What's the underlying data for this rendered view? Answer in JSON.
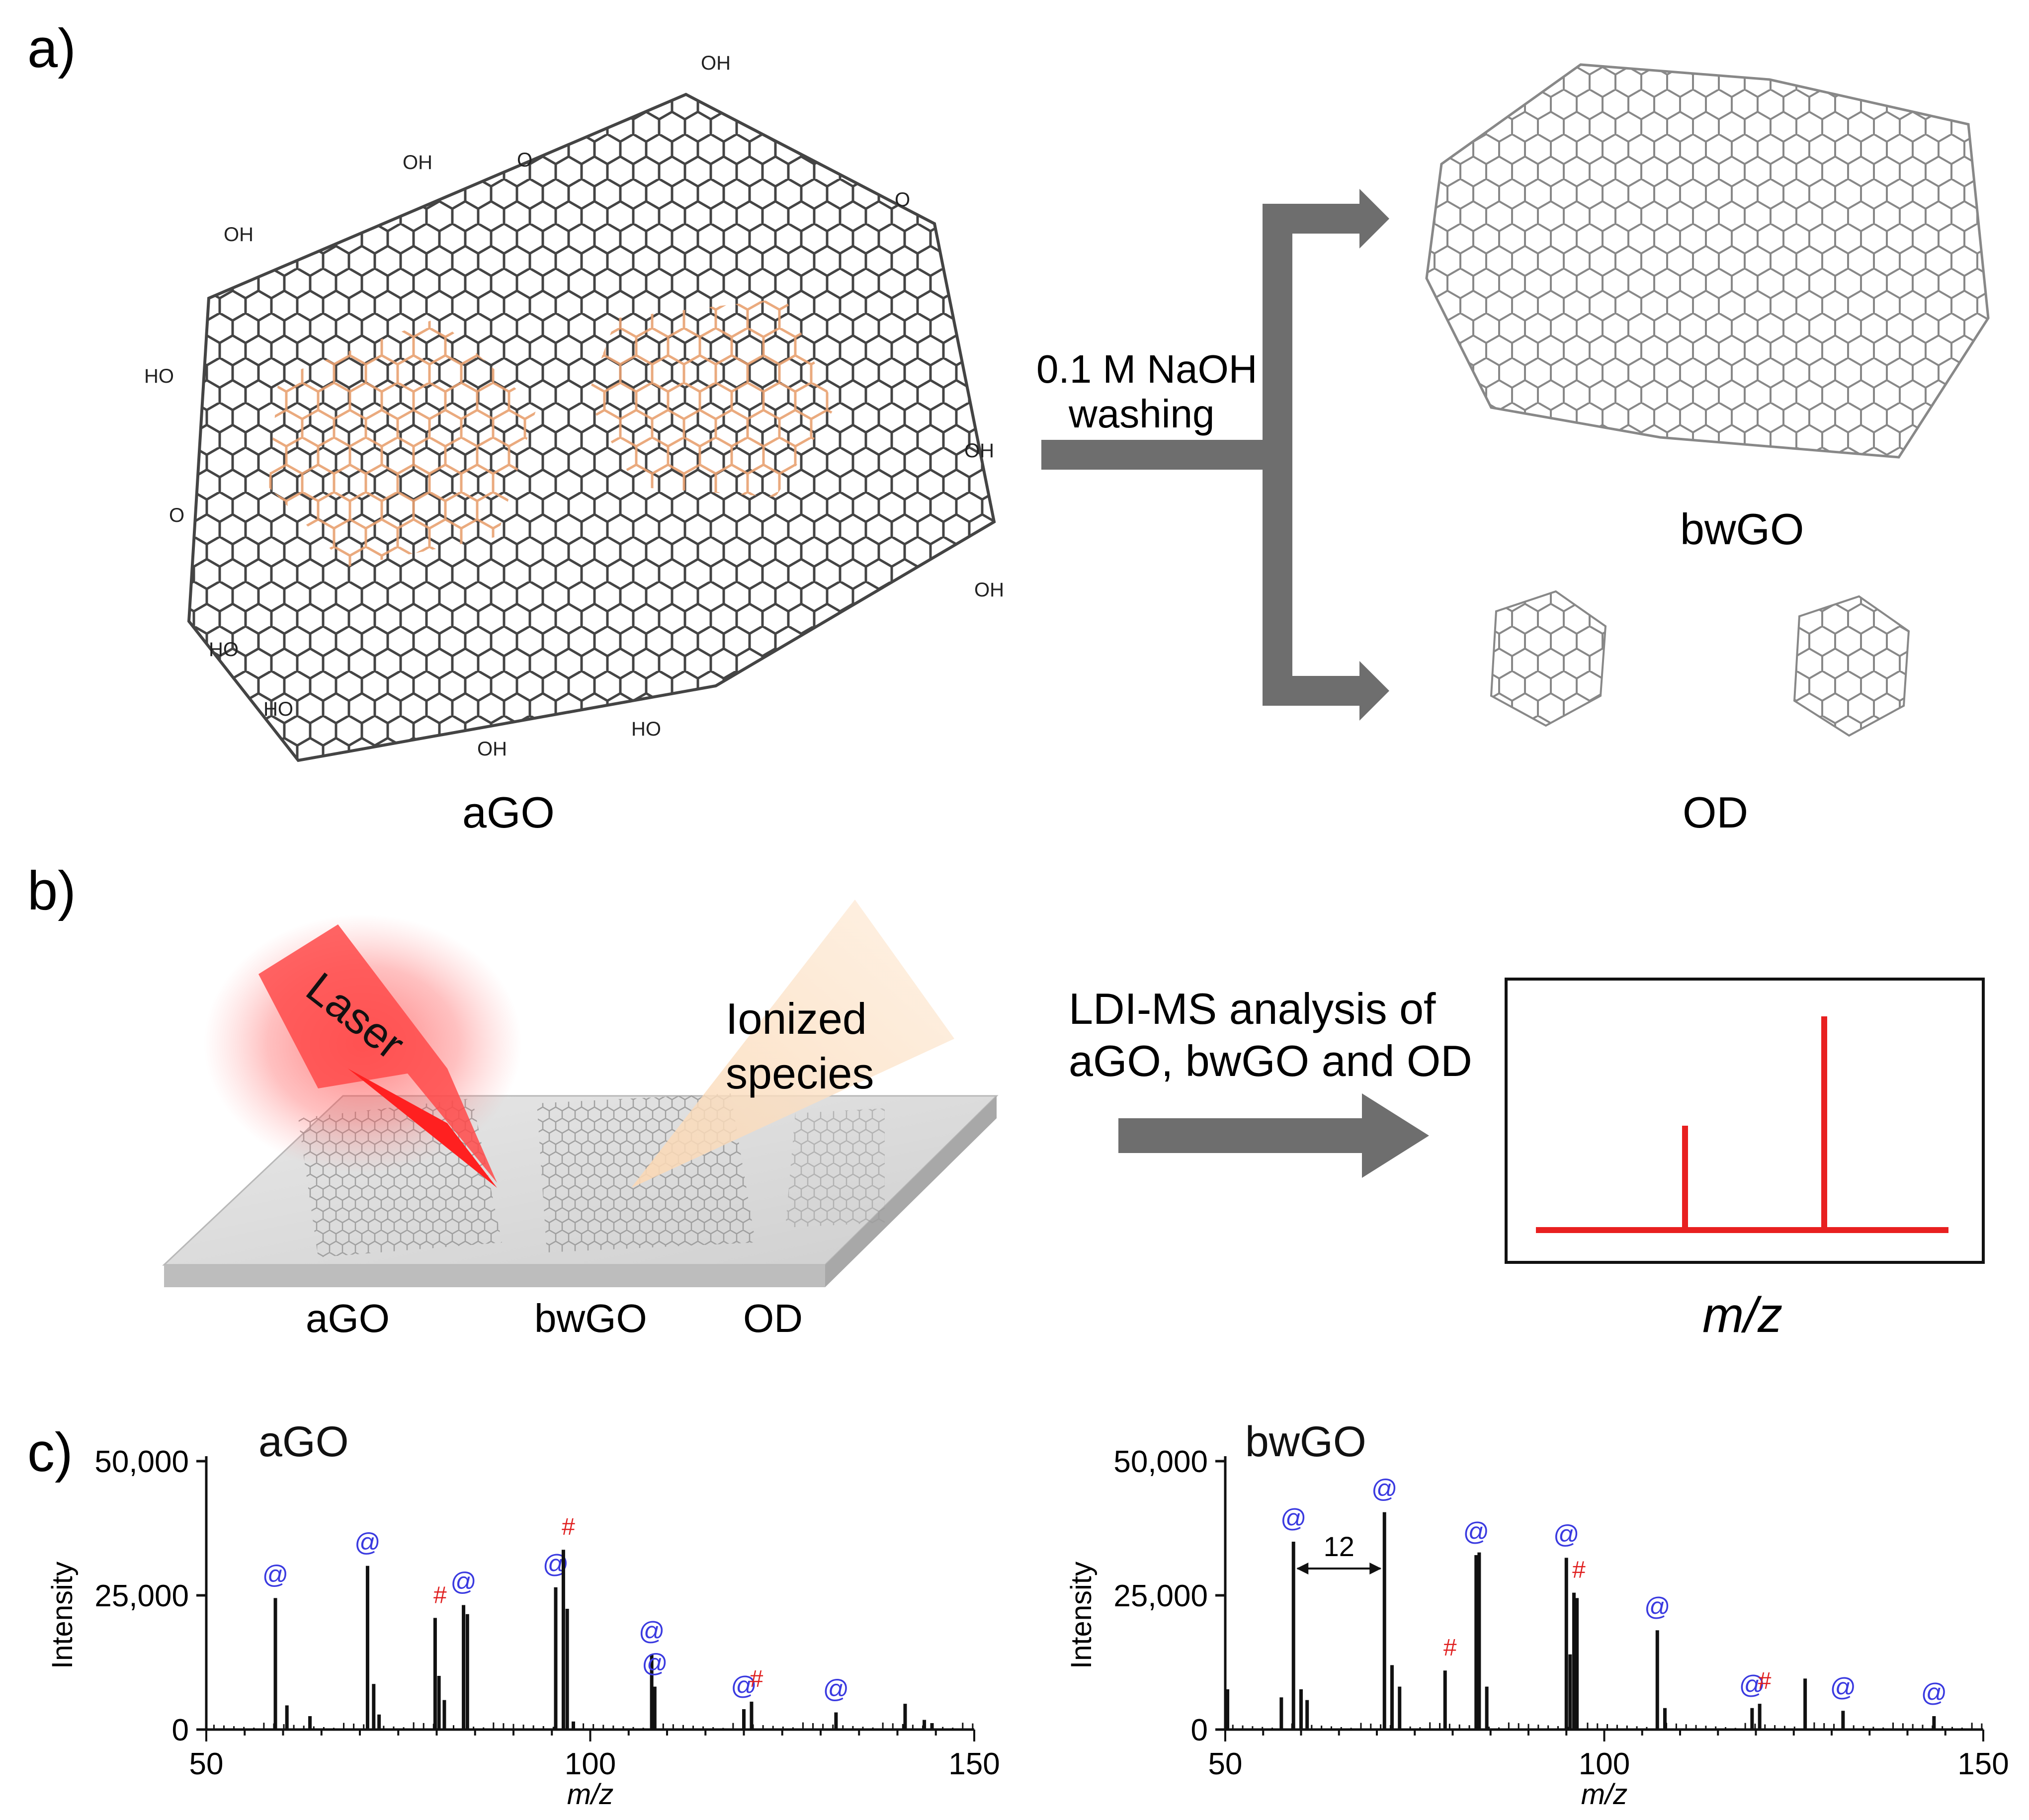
{
  "panels": {
    "a": {
      "label": "a)",
      "agO_label": "aGO",
      "bwgo_label": "bwGO",
      "od_label": "OD",
      "arrow_text_line1": "0.1 M NaOH",
      "arrow_text_line2": "washing",
      "group_labels": [
        "OH",
        "HO",
        "O"
      ]
    },
    "b": {
      "label": "b)",
      "laser_label": "Laser",
      "ionized_line1": "Ionized",
      "ionized_line2": "species",
      "slide_labels": [
        "aGO",
        "bwGO",
        "OD"
      ],
      "analysis_line1": "LDI-MS analysis of",
      "analysis_line2": "aGO, bwGO and OD",
      "spectrum_xlabel": "m/z"
    },
    "c": {
      "label": "c)"
    }
  },
  "colors": {
    "arrow": "#6e6e6e",
    "oxidized_debris": "#e8a070",
    "spectrum_red": "#e82020",
    "at_marker": "#3a3ae0",
    "hash_marker": "#e02020"
  },
  "chart_data": [
    {
      "type": "bar",
      "title": "aGO",
      "xlabel": "m/z",
      "ylabel": "Intensity",
      "xlim": [
        50,
        150
      ],
      "ylim": [
        0,
        50000
      ],
      "xticks": [
        "50",
        "100",
        "150"
      ],
      "yticks": [
        "0",
        "25,000",
        "50,000"
      ],
      "peaks": [
        {
          "x": 59,
          "y": 24500,
          "mark": "@"
        },
        {
          "x": 60.5,
          "y": 4500
        },
        {
          "x": 63.5,
          "y": 2500
        },
        {
          "x": 71,
          "y": 30500,
          "mark": "@"
        },
        {
          "x": 71.8,
          "y": 8500
        },
        {
          "x": 72.5,
          "y": 2800
        },
        {
          "x": 79.8,
          "y": 20800,
          "mark": "#"
        },
        {
          "x": 80.3,
          "y": 10000
        },
        {
          "x": 81,
          "y": 5500
        },
        {
          "x": 83.5,
          "y": 23200,
          "mark": "@"
        },
        {
          "x": 84,
          "y": 21500
        },
        {
          "x": 95.5,
          "y": 26500,
          "mark": "@"
        },
        {
          "x": 96.5,
          "y": 33500,
          "mark": "#"
        },
        {
          "x": 97,
          "y": 22500
        },
        {
          "x": 97.8,
          "y": 1500
        },
        {
          "x": 108,
          "y": 14000,
          "mark": "@"
        },
        {
          "x": 108.4,
          "y": 8000,
          "mark": "@"
        },
        {
          "x": 120,
          "y": 3800,
          "mark": "@"
        },
        {
          "x": 121,
          "y": 5200,
          "mark": "#"
        },
        {
          "x": 132,
          "y": 3200,
          "mark": "@"
        },
        {
          "x": 141,
          "y": 4800
        },
        {
          "x": 143.5,
          "y": 1800
        },
        {
          "x": 144.5,
          "y": 1200
        }
      ]
    },
    {
      "type": "bar",
      "title": "bwGO",
      "xlabel": "m/z",
      "ylabel": "Intensity",
      "xlim": [
        50,
        150
      ],
      "ylim": [
        0,
        50000
      ],
      "xticks": [
        "50",
        "100",
        "150"
      ],
      "yticks": [
        "0",
        "25,000",
        "50,000"
      ],
      "annotation": "12",
      "peaks": [
        {
          "x": 50.3,
          "y": 7500
        },
        {
          "x": 57.4,
          "y": 6000
        },
        {
          "x": 59,
          "y": 35000,
          "mark": "@"
        },
        {
          "x": 60,
          "y": 7500
        },
        {
          "x": 60.8,
          "y": 5500
        },
        {
          "x": 71,
          "y": 40500,
          "mark": "@"
        },
        {
          "x": 72,
          "y": 12000
        },
        {
          "x": 73,
          "y": 8000
        },
        {
          "x": 79,
          "y": 11000,
          "mark": "#"
        },
        {
          "x": 83.1,
          "y": 32500,
          "mark": "@"
        },
        {
          "x": 83.5,
          "y": 33000
        },
        {
          "x": 84.5,
          "y": 8000
        },
        {
          "x": 95,
          "y": 32000,
          "mark": "@"
        },
        {
          "x": 95.5,
          "y": 14000
        },
        {
          "x": 96,
          "y": 25500,
          "mark": "#"
        },
        {
          "x": 96.4,
          "y": 24500
        },
        {
          "x": 107,
          "y": 18500,
          "mark": "@"
        },
        {
          "x": 108,
          "y": 4000
        },
        {
          "x": 119.5,
          "y": 4000,
          "mark": "@"
        },
        {
          "x": 120.5,
          "y": 4800,
          "mark": "#"
        },
        {
          "x": 126.5,
          "y": 9500
        },
        {
          "x": 131.5,
          "y": 3500,
          "mark": "@"
        },
        {
          "x": 143.5,
          "y": 2500,
          "mark": "@"
        }
      ]
    }
  ]
}
